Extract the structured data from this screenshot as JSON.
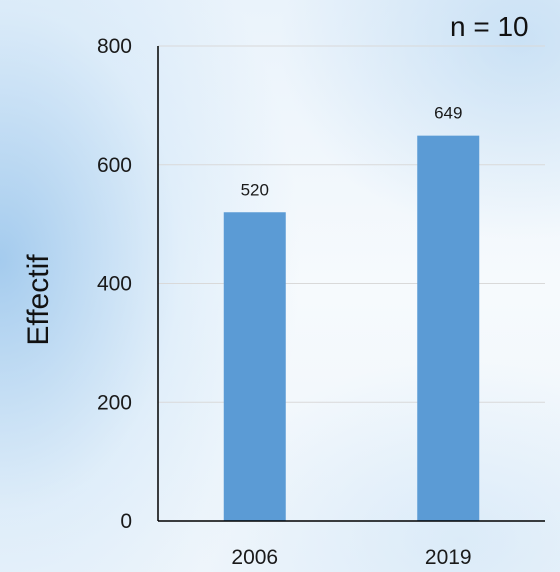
{
  "chart_data": {
    "type": "bar",
    "categories": [
      "2006",
      "2019"
    ],
    "values": [
      520,
      649
    ],
    "data_labels": [
      "520",
      "649"
    ],
    "ylabel": "Effectif",
    "annotation": "n = 10",
    "ylim": [
      0,
      800
    ],
    "yticks": [
      0,
      200,
      400,
      600,
      800
    ],
    "grid": true,
    "legend": "none",
    "colors": {
      "bar": "#5b9bd5",
      "grid": "#d9d9d9",
      "axis": "#000000"
    }
  }
}
